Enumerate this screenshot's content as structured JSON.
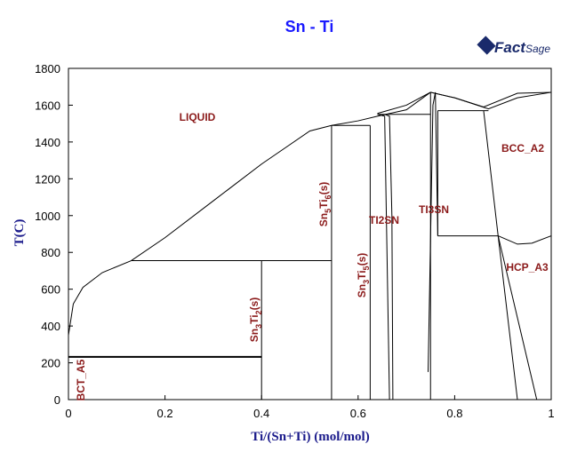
{
  "chart_data": {
    "type": "line",
    "title": "Sn - Ti",
    "logo": [
      "Fact",
      "Sage"
    ],
    "x_label": "Ti/(Sn+Ti) (mol/mol)",
    "y_label": "T(C)",
    "xlim": [
      0,
      1
    ],
    "xticks": [
      0,
      0.2,
      0.4,
      0.6,
      0.8,
      1
    ],
    "ylim": [
      0,
      1800
    ],
    "yticks": [
      0,
      200,
      400,
      600,
      800,
      1000,
      1200,
      1400,
      1600,
      1800
    ],
    "color": "#000000",
    "series": [
      {
        "x": [
          0,
          0.01,
          0.03,
          0.07,
          0.13,
          0.2,
          0.3,
          0.4,
          0.45,
          0.5,
          0.545
        ],
        "values": [
          350,
          520,
          610,
          690,
          755,
          880,
          1080,
          1280,
          1370,
          1460,
          1490
        ]
      },
      {
        "x": [
          0.545,
          0.6,
          0.64,
          0.7,
          0.75
        ],
        "values": [
          1490,
          1515,
          1540,
          1575,
          1670
        ]
      },
      {
        "x": [
          0.64,
          0.7,
          0.75,
          0.8,
          0.87,
          0.93,
          1
        ],
        "values": [
          1555,
          1600,
          1670,
          1640,
          1580,
          1640,
          1670
        ]
      },
      {
        "x": [
          0.75,
          0.8,
          0.86,
          0.93,
          1
        ],
        "values": [
          1670,
          1640,
          1590,
          1665,
          1670
        ]
      },
      {
        "x": [
          0,
          0.4
        ],
        "values": [
          232,
          232
        ]
      },
      {
        "x": [
          0.13,
          0.545
        ],
        "values": [
          755,
          755
        ]
      },
      {
        "x": [
          0.4,
          0.4
        ],
        "values": [
          0,
          755
        ]
      },
      {
        "x": [
          0.545,
          0.545
        ],
        "values": [
          0,
          1490
        ]
      },
      {
        "x": [
          0.545,
          0.625
        ],
        "values": [
          1490,
          1490
        ]
      },
      {
        "x": [
          0.625,
          0.625
        ],
        "values": [
          0,
          1490
        ]
      },
      {
        "x": [
          0.64,
          0.75
        ],
        "values": [
          1550,
          1550
        ]
      },
      {
        "x": [
          0.64,
          0.655,
          0.665
        ],
        "values": [
          1550,
          1540,
          0
        ]
      },
      {
        "x": [
          0.655,
          0.665,
          0.67,
          0.672
        ],
        "values": [
          1550,
          1540,
          1000,
          0
        ]
      },
      {
        "x": [
          0.75,
          0.75
        ],
        "values": [
          0,
          1670
        ]
      },
      {
        "x": [
          0.745,
          0.755,
          0.76,
          0.765
        ],
        "values": [
          150,
          1600,
          1670,
          890
        ]
      },
      {
        "x": [
          0.765,
          0.765
        ],
        "values": [
          890,
          1570
        ]
      },
      {
        "x": [
          0.765,
          0.87
        ],
        "values": [
          1570,
          1570
        ]
      },
      {
        "x": [
          0.765,
          0.89
        ],
        "values": [
          890,
          890
        ]
      },
      {
        "x": [
          0.86,
          0.89,
          0.93
        ],
        "values": [
          1570,
          890,
          0
        ]
      },
      {
        "x": [
          0.89,
          0.97
        ],
        "values": [
          890,
          0
        ]
      },
      {
        "x": [
          0.89,
          0.93,
          0.96,
          1
        ],
        "values": [
          890,
          845,
          850,
          890
        ]
      }
    ],
    "annotations": [
      {
        "parts": [
          "LIQUID"
        ]
      },
      {
        "parts": [
          "BCC_A2"
        ]
      },
      {
        "parts": [
          "HCP_A3"
        ]
      },
      {
        "parts": [
          "TI2SN"
        ]
      },
      {
        "parts": [
          "TI3SN"
        ]
      },
      {
        "parts": [
          "BCT_A5"
        ]
      },
      {
        "parts": [
          "Sn",
          "3",
          "Ti",
          "2",
          "(s)"
        ]
      },
      {
        "parts": [
          "Sn",
          "5",
          "Ti",
          "6",
          "(s)"
        ]
      },
      {
        "parts": [
          "Sn",
          "3",
          "Ti",
          "5",
          "(s)"
        ]
      }
    ]
  }
}
